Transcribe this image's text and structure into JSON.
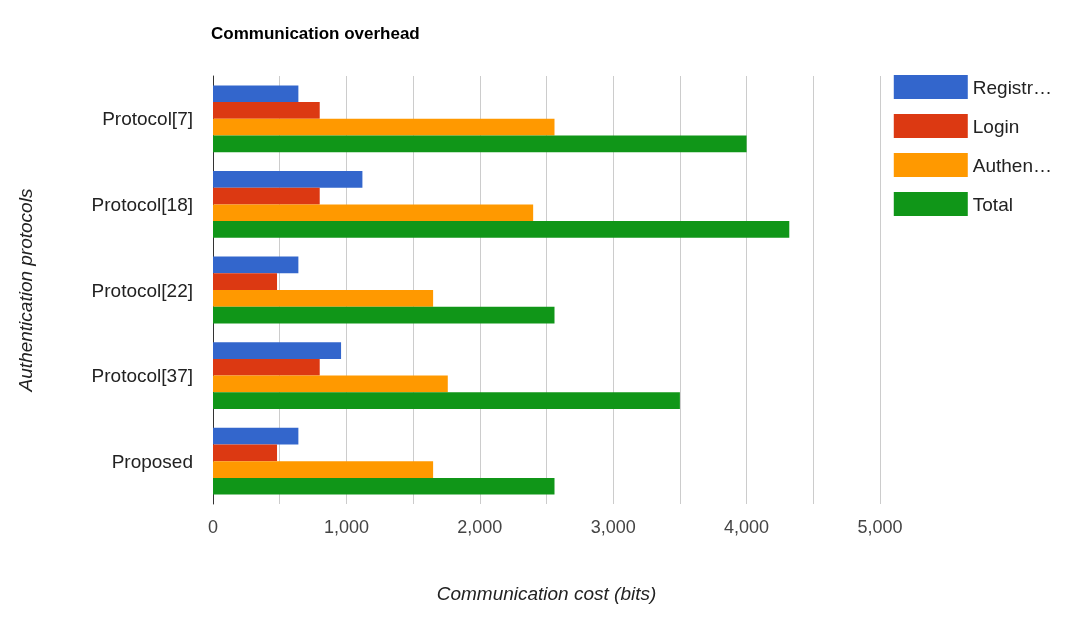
{
  "chart_data": {
    "type": "bar",
    "orientation": "horizontal",
    "title": "Communication overhead",
    "xlabel": "Communication cost (bits)",
    "ylabel": "Authentication protocols",
    "categories": [
      "Protocol[7]",
      "Protocol[18]",
      "Protocol[22]",
      "Protocol[37]",
      "Proposed"
    ],
    "series": [
      {
        "name": "Registr…",
        "color": "#3366cc",
        "values": [
          640,
          1120,
          640,
          960,
          640
        ]
      },
      {
        "name": "Login",
        "color": "#dc3912",
        "values": [
          800,
          800,
          480,
          800,
          480
        ]
      },
      {
        "name": "Authen…",
        "color": "#ff9900",
        "values": [
          2560,
          2400,
          1650,
          1760,
          1650
        ]
      },
      {
        "name": "Total",
        "color": "#109618",
        "values": [
          4000,
          4320,
          2560,
          3500,
          2560
        ]
      }
    ],
    "xlim": [
      0,
      5000
    ],
    "xticks": [
      0,
      {
        "value": 500,
        "label": null
      },
      {
        "value": 1000,
        "label": "1,000"
      },
      {
        "value": 1500,
        "label": null
      },
      {
        "value": 2000,
        "label": "2,000"
      },
      {
        "value": 2500,
        "label": null
      },
      {
        "value": 3000,
        "label": "3,000"
      },
      {
        "value": 3500,
        "label": null
      },
      {
        "value": 4000,
        "label": "4,000"
      },
      {
        "value": 4500,
        "label": null
      },
      {
        "value": 5000,
        "label": "5,000"
      }
    ],
    "grid": "x",
    "legend": "top right"
  }
}
